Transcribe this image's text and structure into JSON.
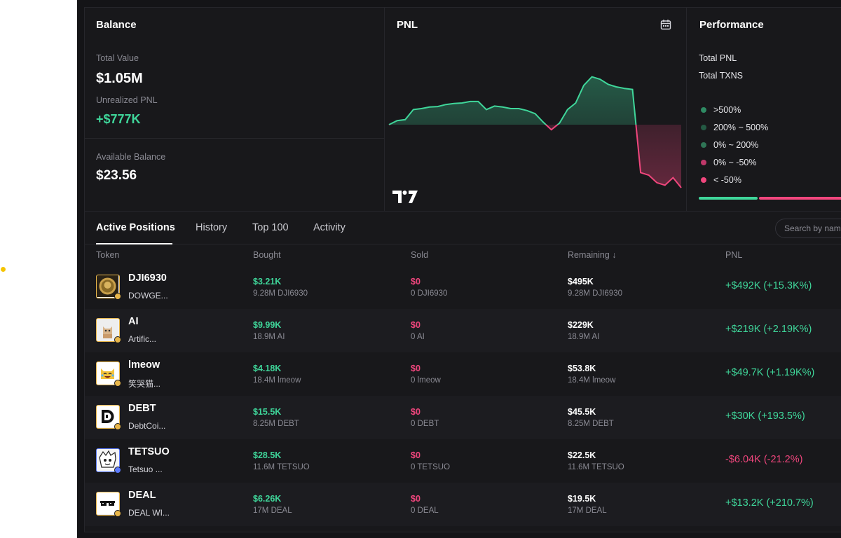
{
  "balance": {
    "title": "Balance",
    "total_value_label": "Total Value",
    "total_value": "$1.05M",
    "unrealized_label": "Unrealized PNL",
    "unrealized_value": "+$777K",
    "available_label": "Available Balance",
    "available_value": "$23.56"
  },
  "pnl": {
    "title": "PNL",
    "calendar_icon": "calendar-icon",
    "chart_logo": "tradingview-logo"
  },
  "chart_data": {
    "type": "area",
    "title": "PNL",
    "xlabel": "",
    "ylabel": "",
    "baseline": 0,
    "values": [
      0.0,
      0.08,
      0.1,
      0.3,
      0.32,
      0.35,
      0.36,
      0.4,
      0.42,
      0.43,
      0.46,
      0.46,
      0.3,
      0.37,
      0.35,
      0.32,
      0.32,
      0.28,
      0.22,
      0.05,
      -0.1,
      0.03,
      0.3,
      0.43,
      0.78,
      0.95,
      0.9,
      0.8,
      0.75,
      0.72,
      0.7,
      -0.95,
      -1.0,
      -1.15,
      -1.2,
      -1.05,
      -1.25
    ],
    "colors": {
      "positive": "#3fd69a",
      "negative": "#f0467d"
    },
    "grid": false
  },
  "performance": {
    "title": "Performance",
    "total_pnl_label": "Total PNL",
    "total_txns_label": "Total TXNS",
    "legend": [
      {
        "label": ">500%",
        "color": "#2e8a63"
      },
      {
        "label": "200% ~ 500%",
        "color": "#245a44"
      },
      {
        "label": "0% ~ 200%",
        "color": "#2f7556"
      },
      {
        "label": "0% ~ -50%",
        "color": "#c0386a"
      },
      {
        "label": "< -50%",
        "color": "#f0467d"
      }
    ],
    "bar_colors": {
      "positive": "#3fd69a",
      "negative": "#f0467d"
    }
  },
  "tabs": [
    "Active Positions",
    "History",
    "Top 100",
    "Activity"
  ],
  "search": {
    "placeholder": "Search by name"
  },
  "table": {
    "headers": [
      "Token",
      "Bought",
      "Sold",
      "Remaining ↓",
      "PNL"
    ],
    "rows": [
      {
        "symbol": "DJI6930",
        "name": "DOWGE...",
        "avatar_icon": "doge-coin-icon",
        "bought": "$3.21K",
        "bought_sub": "9.28M DJI6930",
        "sold": "$0",
        "sold_sub": "0 DJI6930",
        "remaining": "$495K",
        "remaining_sub": "9.28M DJI6930",
        "pnl": "+$492K (+15.3K%)",
        "positive": true
      },
      {
        "symbol": "AI",
        "name": "Artific...",
        "avatar_icon": "cat-photo-icon",
        "bought": "$9.99K",
        "bought_sub": "18.9M AI",
        "sold": "$0",
        "sold_sub": "0 AI",
        "remaining": "$229K",
        "remaining_sub": "18.9M AI",
        "pnl": "+$219K (+2.19K%)",
        "positive": true
      },
      {
        "symbol": "lmeow",
        "name": "笑哭猫...",
        "avatar_icon": "laughing-cat-icon",
        "bought": "$4.18K",
        "bought_sub": "18.4M lmeow",
        "sold": "$0",
        "sold_sub": "0 lmeow",
        "remaining": "$53.8K",
        "remaining_sub": "18.4M lmeow",
        "pnl": "+$49.7K (+1.19K%)",
        "positive": true
      },
      {
        "symbol": "DEBT",
        "name": "DebtCoi...",
        "avatar_icon": "debt-logo-icon",
        "bought": "$15.5K",
        "bought_sub": "8.25M DEBT",
        "sold": "$0",
        "sold_sub": "0 DEBT",
        "remaining": "$45.5K",
        "remaining_sub": "8.25M DEBT",
        "pnl": "+$30K (+193.5%)",
        "positive": true
      },
      {
        "symbol": "TETSUO",
        "name": "Tetsuo ...",
        "avatar_icon": "anime-face-icon",
        "bought": "$28.5K",
        "bought_sub": "11.6M TETSUO",
        "sold": "$0",
        "sold_sub": "0 TETSUO",
        "remaining": "$22.5K",
        "remaining_sub": "11.6M TETSUO",
        "pnl": "-$6.04K (-21.2%)",
        "positive": false
      },
      {
        "symbol": "DEAL",
        "name": "DEAL WI...",
        "avatar_icon": "sunglasses-icon",
        "bought": "$6.26K",
        "bought_sub": "17M DEAL",
        "sold": "$0",
        "sold_sub": "0 DEAL",
        "remaining": "$19.5K",
        "remaining_sub": "17M DEAL",
        "pnl": "+$13.2K (+210.7%)",
        "positive": true
      }
    ]
  }
}
